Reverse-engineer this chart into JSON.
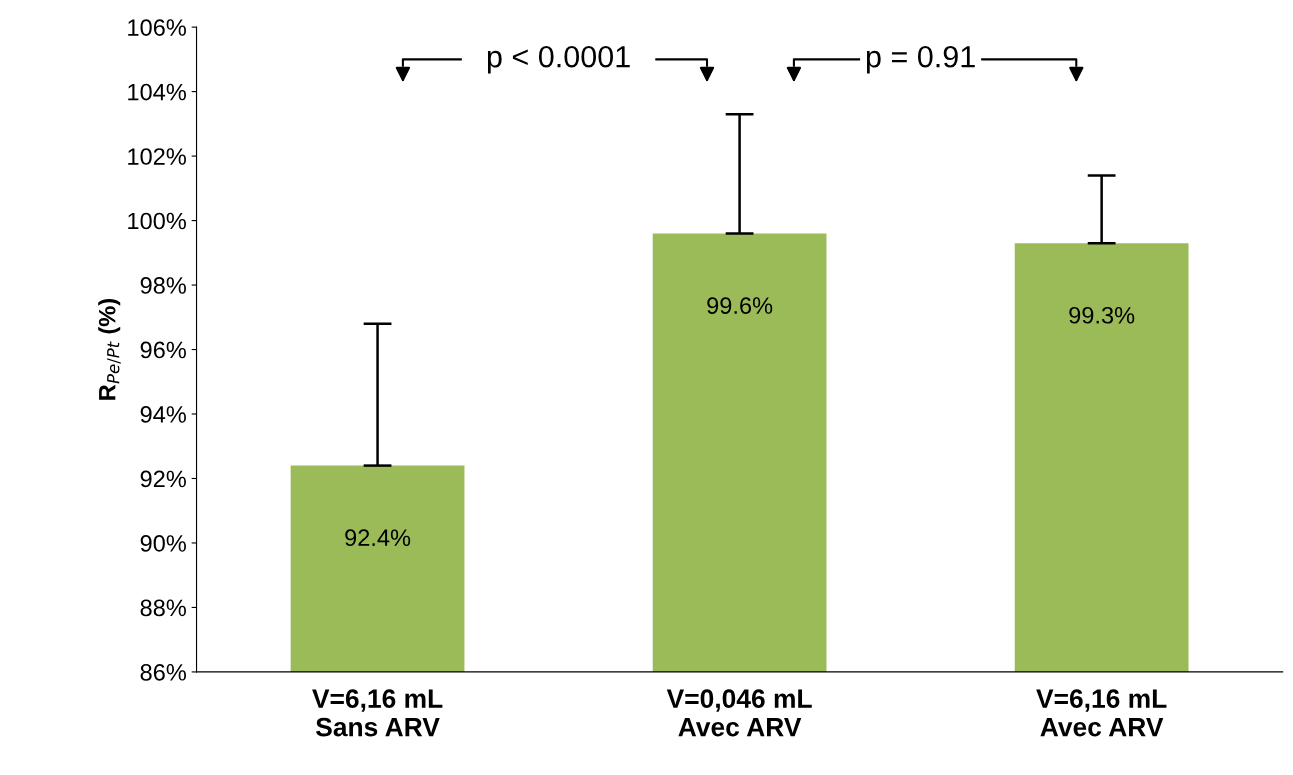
{
  "chart_data": {
    "type": "bar",
    "ylabel": "R$_{Pe/Pt}$ (%)",
    "categories": [
      "V=6,16 mL\nSans ARV",
      "V=0,046 mL\nAvec ARV",
      "V=6,16 mL\nAvec ARV"
    ],
    "values": [
      92.4,
      99.6,
      99.3
    ],
    "value_labels": [
      "92.4%",
      "99.6%",
      "99.3%"
    ],
    "errors": [
      [
        92.4,
        96.8
      ],
      [
        99.6,
        103.3
      ],
      [
        99.3,
        101.4
      ]
    ],
    "color": "#9bbb59",
    "ylim": [
      86,
      106
    ],
    "yticks": [
      {
        "value": 86,
        "label": "86%"
      },
      {
        "value": 88,
        "label": "88%"
      },
      {
        "value": 90,
        "label": "90%"
      },
      {
        "value": 92,
        "label": "92%"
      },
      {
        "value": 94,
        "label": "94%"
      },
      {
        "value": 96,
        "label": "96%"
      },
      {
        "value": 98,
        "label": "98%"
      },
      {
        "value": 100,
        "label": "100%"
      },
      {
        "value": 102,
        "label": "102%"
      },
      {
        "value": 104,
        "label": "104%"
      },
      {
        "value": 106,
        "label": "106%"
      }
    ],
    "annotations": [
      "p < 0.0001",
      "p = 0.91"
    ],
    "grid": false,
    "legend": false
  }
}
